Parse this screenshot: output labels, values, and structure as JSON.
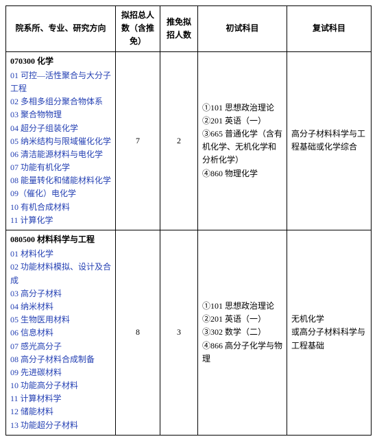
{
  "headers": {
    "dept": "院系所、专业、研究方向",
    "plan_total": "拟招总人数（含推免）",
    "plan_rec": "推免拟招人数",
    "exam_initial": "初试科目",
    "exam_retest": "复试科目"
  },
  "sections": [
    {
      "title": "070300 化学",
      "directions": [
        "01 可控—活性聚合与大分子工程",
        "02 多相多组分聚合物体系",
        "03 聚合物物理",
        "04 超分子组装化学",
        "05 纳米结构与限域催化化学",
        "06 清洁能源材料与电化学",
        "07 功能有机化学",
        "08 能量转化和储能材料化学",
        "09（催化）电化学",
        "10 有机合成材料",
        "11 计算化学"
      ],
      "plan_total": "7",
      "plan_rec": "2",
      "exam_initial": "①101 思想政治理论\n②201 英语（一）\n③665 普通化学（含有机化学、无机化学和分析化学）\n④860 物理化学",
      "exam_retest": "高分子材料科学与工程基础或化学综合"
    },
    {
      "title": "080500 材料科学与工程",
      "directions": [
        "01 材料化学",
        "02 功能材料模拟、设计及合成",
        "03 高分子材料",
        "04 纳米材料",
        "05 生物医用材料",
        "06 信息材料",
        "07 感光高分子",
        "08 高分子材料合成制备",
        "09 先进碳材料",
        "10 功能高分子材料",
        "11 计算材料学",
        "12 储能材料",
        "13 功能超分子材料"
      ],
      "plan_total": "8",
      "plan_rec": "3",
      "exam_initial": "①101 思想政治理论\n②201 英语（一）\n③302 数学（二）\n④866 高分子化学与物理",
      "exam_retest": "无机化学\n或高分子材料科学与工程基础"
    }
  ]
}
